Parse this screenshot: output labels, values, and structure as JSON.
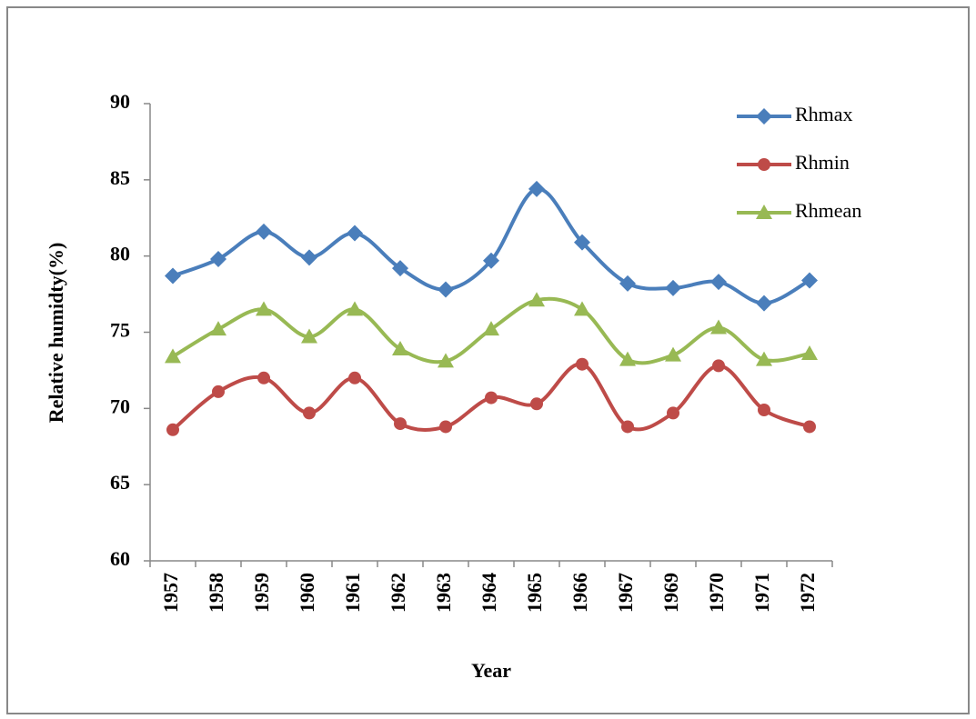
{
  "chart_data": {
    "type": "line",
    "y_label": "Relative humidty(%)",
    "x_label": "Year",
    "categories": [
      "1957",
      "1958",
      "1959",
      "1960",
      "1961",
      "1962",
      "1963",
      "1964",
      "1965",
      "1966",
      "1967",
      "1969",
      "1970",
      "1971",
      "1972"
    ],
    "series": [
      {
        "name": "Rhmax",
        "color": "#4a7ebb",
        "marker": "diamond",
        "values": [
          78.7,
          79.8,
          81.6,
          79.9,
          81.5,
          79.2,
          77.8,
          79.7,
          84.4,
          80.9,
          78.2,
          77.9,
          78.3,
          76.9,
          78.4
        ]
      },
      {
        "name": "Rhmin",
        "color": "#be4b48",
        "marker": "circle",
        "values": [
          68.6,
          71.1,
          72.0,
          69.7,
          72.0,
          69.0,
          68.8,
          70.7,
          70.3,
          72.9,
          68.8,
          69.7,
          72.8,
          69.9,
          68.8
        ]
      },
      {
        "name": "Rhmean",
        "color": "#98b954",
        "marker": "triangle",
        "values": [
          73.4,
          75.2,
          76.5,
          74.7,
          76.5,
          73.9,
          73.1,
          75.2,
          77.1,
          76.5,
          73.2,
          73.5,
          75.3,
          73.2,
          73.6
        ]
      }
    ],
    "ylim": [
      60,
      90
    ],
    "yticks": [
      60,
      65,
      70,
      75,
      80,
      85,
      90
    ],
    "smooth": true,
    "legend": "top-right"
  }
}
